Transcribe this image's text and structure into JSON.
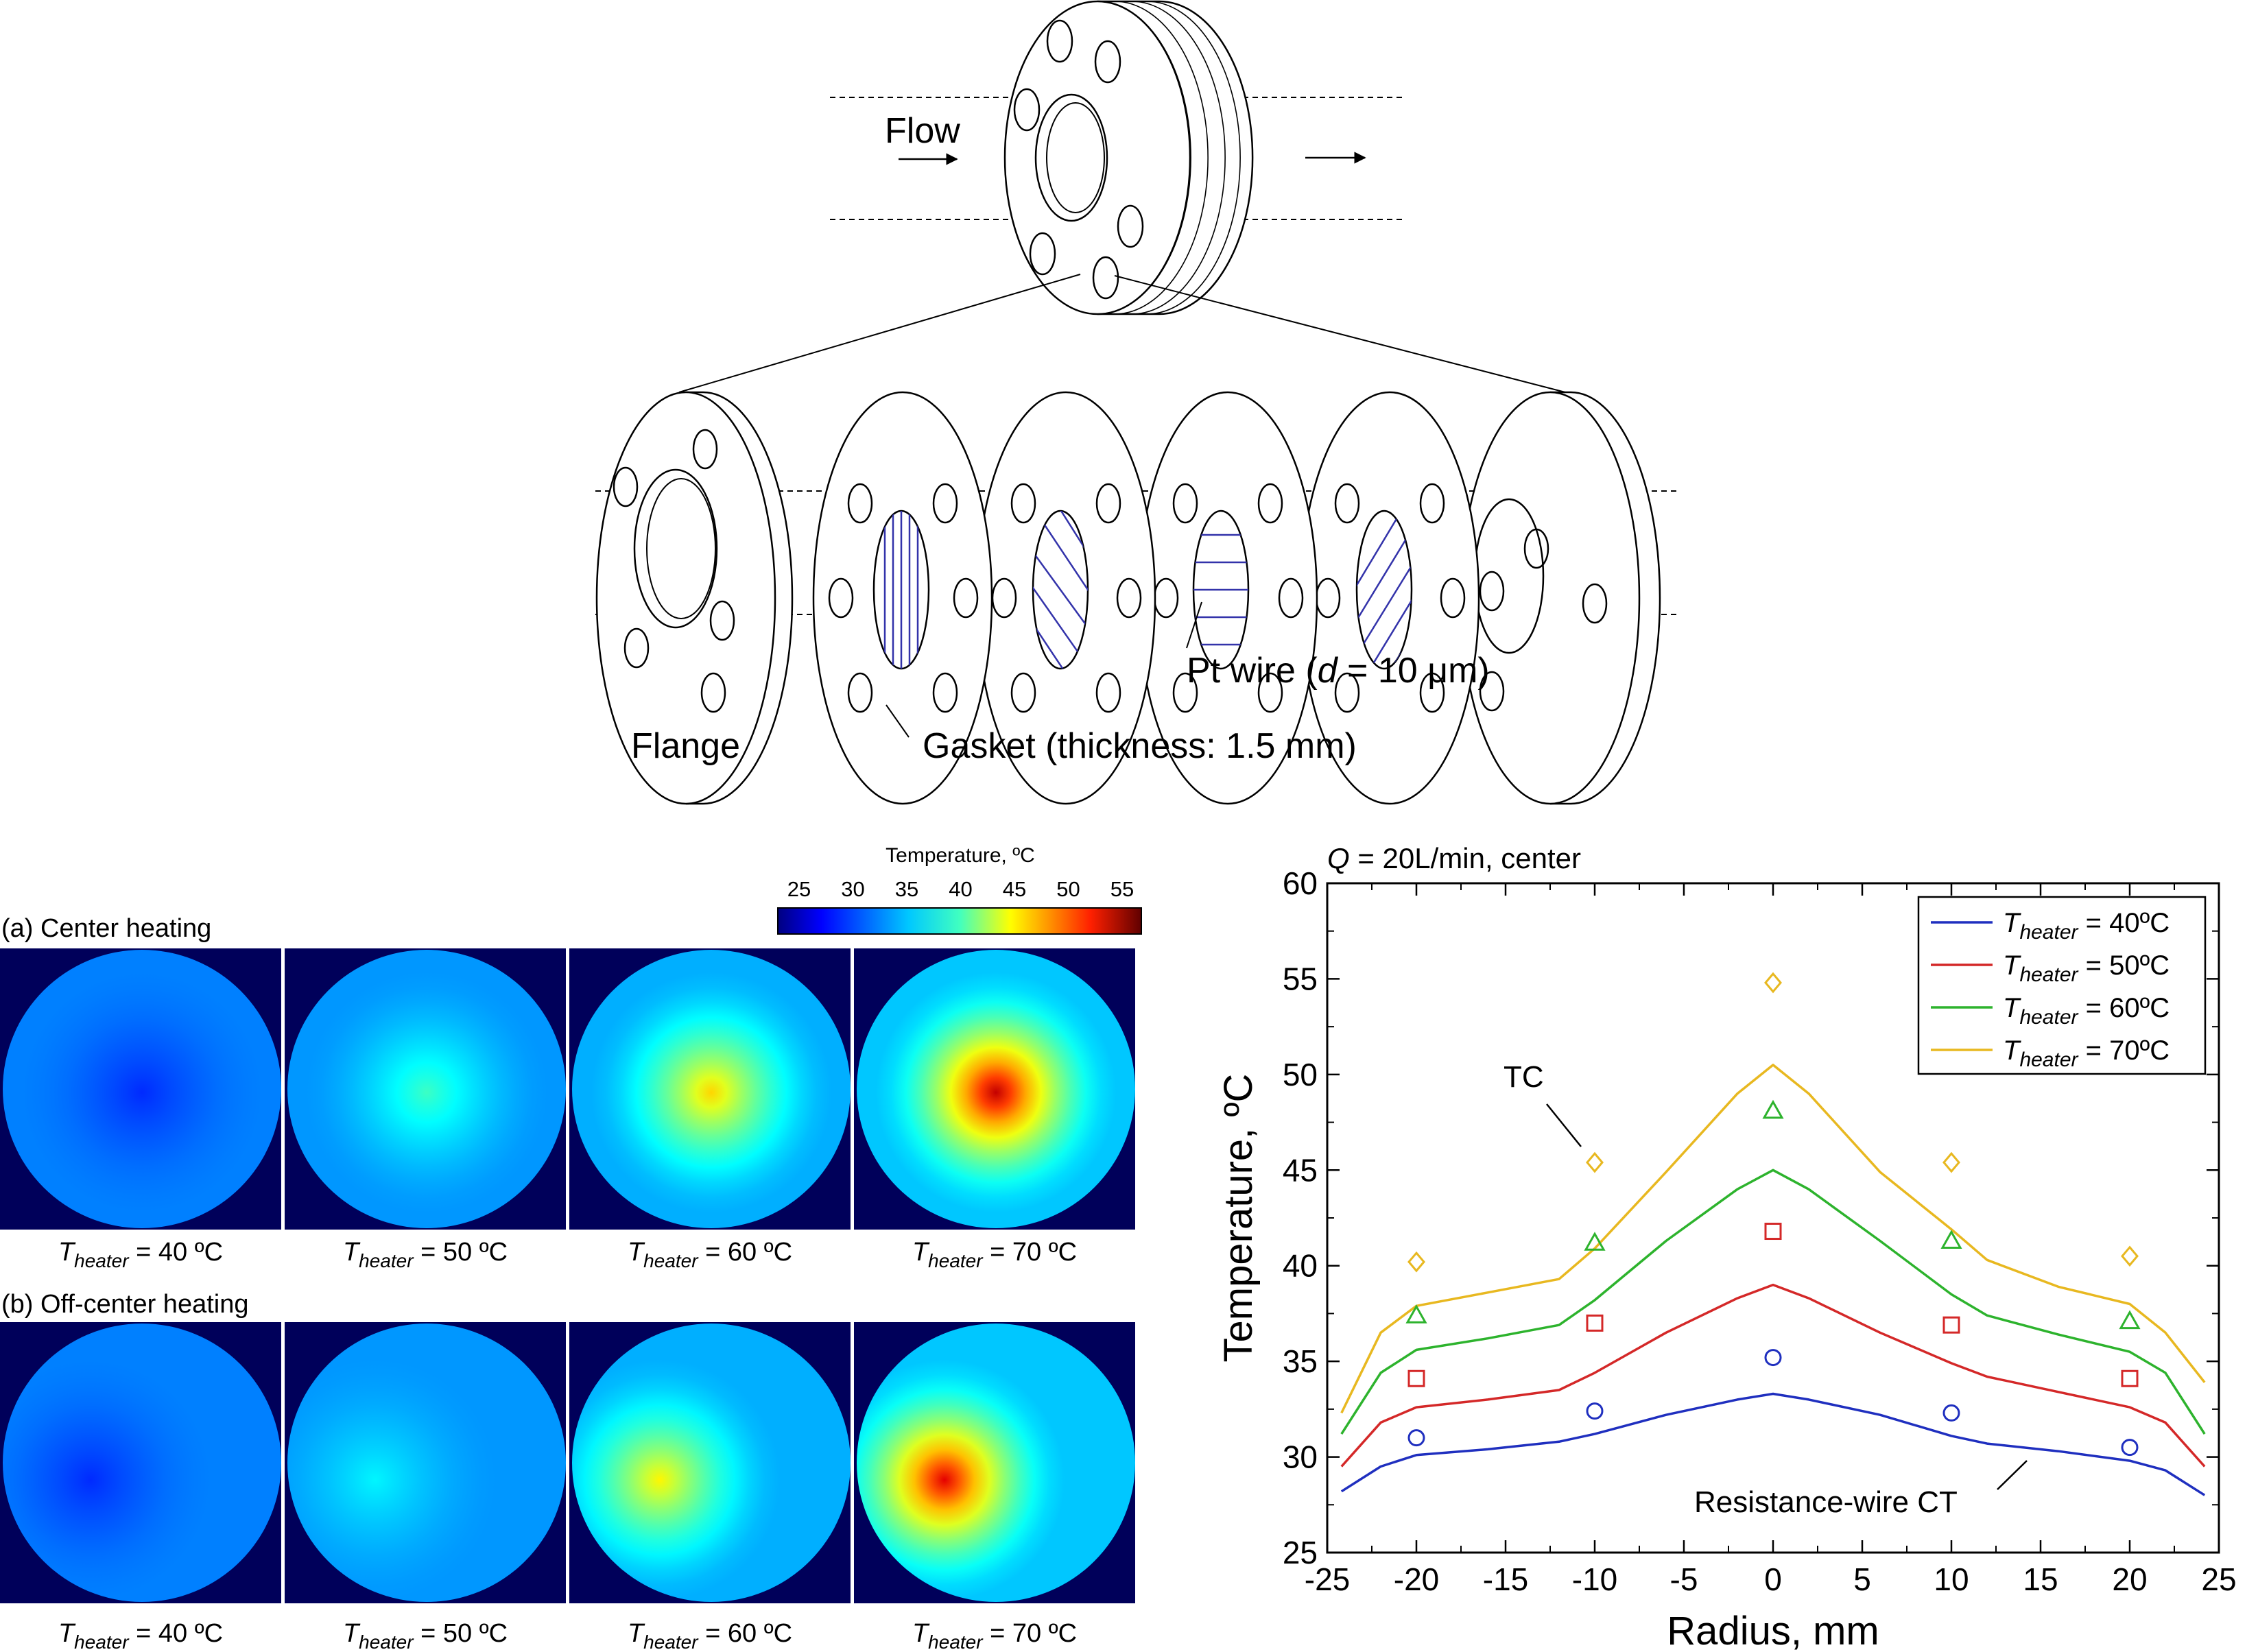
{
  "schematic": {
    "flow_label": "Flow",
    "flange_label": "Flange",
    "gasket_label": "Gasket (thickness: 1.5 mm)",
    "wire_label_pre": "Pt wire (",
    "wire_label_var": "d",
    "wire_label_post": " = 10 μm)",
    "wire_color": "#3333aa"
  },
  "colorbar": {
    "title": "Temperature, ºC",
    "ticks": [
      "25",
      "30",
      "35",
      "40",
      "45",
      "50",
      "55"
    ],
    "range": [
      25,
      55
    ],
    "colormap": "jet"
  },
  "panel_a": {
    "label": "(a) Center heating",
    "peak_temps": [
      30,
      38,
      45,
      53
    ],
    "hot_spot": "center"
  },
  "panel_b": {
    "label": "(b) Off-center heating",
    "peak_temps": [
      30,
      36,
      44,
      52
    ],
    "hot_spot": "left-of-center"
  },
  "image_captions": [
    {
      "var": "T",
      "sub": "heater",
      "rest": " = 40 ºC"
    },
    {
      "var": "T",
      "sub": "heater",
      "rest": " = 50 ºC"
    },
    {
      "var": "T",
      "sub": "heater",
      "rest": " = 60 ºC"
    },
    {
      "var": "T",
      "sub": "heater",
      "rest": " = 70 ºC"
    }
  ],
  "chart_data": {
    "type": "line",
    "title_var": "Q",
    "title_rest": " = 20L/min, center",
    "xlabel": "Radius, mm",
    "ylabel": "Temperature, ºC",
    "xlim": [
      -25,
      25
    ],
    "ylim": [
      25,
      60
    ],
    "xticks": [
      "-25",
      "-20",
      "-15",
      "-10",
      "-5",
      "0",
      "5",
      "10",
      "15",
      "20",
      "25"
    ],
    "yticks": [
      "25",
      "30",
      "35",
      "40",
      "45",
      "50",
      "55",
      "60"
    ],
    "legend_position": "top-right",
    "annotation_tc": "TC",
    "annotation_ct": "Resistance-wire CT",
    "series": [
      {
        "name_var": "T",
        "name_sub": "heater",
        "name_rest": " = 40ºC",
        "color": "#1f2fbf",
        "marker": "circle",
        "line_x": [
          -24.2,
          -22,
          -20,
          -16,
          -12,
          -10,
          -6,
          -2,
          0,
          2,
          6,
          10,
          12,
          16,
          20,
          22,
          24.2
        ],
        "line_y": [
          28.2,
          29.5,
          30.1,
          30.4,
          30.8,
          31.2,
          32.2,
          33.0,
          33.3,
          33.0,
          32.2,
          31.1,
          30.7,
          30.3,
          29.8,
          29.3,
          28.0
        ],
        "tc_x": [
          -20,
          -10,
          0,
          10,
          20
        ],
        "tc_y": [
          31.0,
          32.4,
          35.2,
          32.3,
          30.5
        ]
      },
      {
        "name_var": "T",
        "name_sub": "heater",
        "name_rest": " = 50ºC",
        "color": "#d42828",
        "marker": "square",
        "line_x": [
          -24.2,
          -22,
          -20,
          -16,
          -12,
          -10,
          -6,
          -2,
          0,
          2,
          6,
          10,
          12,
          16,
          20,
          22,
          24.2
        ],
        "line_y": [
          29.5,
          31.8,
          32.6,
          33.0,
          33.5,
          34.4,
          36.5,
          38.3,
          39.0,
          38.3,
          36.5,
          34.9,
          34.2,
          33.4,
          32.6,
          31.8,
          29.5
        ],
        "tc_x": [
          -20,
          -10,
          0,
          10,
          20
        ],
        "tc_y": [
          34.1,
          37.0,
          41.8,
          36.9,
          34.1
        ]
      },
      {
        "name_var": "T",
        "name_sub": "heater",
        "name_rest": " = 60ºC",
        "color": "#2db32d",
        "marker": "triangle",
        "line_x": [
          -24.2,
          -22,
          -20,
          -16,
          -12,
          -10,
          -6,
          -2,
          0,
          2,
          6,
          10,
          12,
          16,
          20,
          22,
          24.2
        ],
        "line_y": [
          31.2,
          34.4,
          35.6,
          36.2,
          36.9,
          38.2,
          41.3,
          44.0,
          45.0,
          44.0,
          41.3,
          38.5,
          37.4,
          36.4,
          35.5,
          34.4,
          31.2
        ],
        "tc_x": [
          -20,
          -10,
          0,
          10,
          20
        ],
        "tc_y": [
          37.4,
          41.2,
          48.1,
          41.3,
          37.1
        ]
      },
      {
        "name_var": "T",
        "name_sub": "heater",
        "name_rest": " = 70ºC",
        "color": "#e8b820",
        "marker": "diamond",
        "line_x": [
          -24.2,
          -22,
          -20,
          -16,
          -12,
          -10,
          -6,
          -2,
          0,
          2,
          6,
          10,
          12,
          16,
          20,
          22,
          24.2
        ],
        "line_y": [
          32.3,
          36.5,
          37.9,
          38.6,
          39.3,
          40.9,
          44.9,
          49.0,
          50.5,
          49.0,
          44.9,
          41.9,
          40.3,
          38.9,
          38.0,
          36.5,
          33.9
        ],
        "tc_x": [
          -20,
          -10,
          0,
          10,
          20
        ],
        "tc_y": [
          40.2,
          45.4,
          54.8,
          45.4,
          40.5
        ]
      }
    ]
  }
}
